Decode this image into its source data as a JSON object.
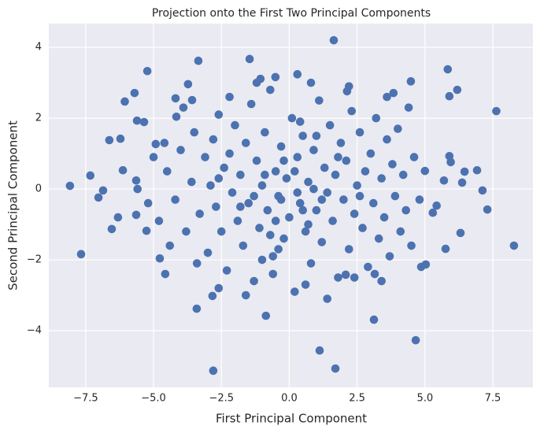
{
  "chart_data": {
    "type": "scatter",
    "title": "Projection onto the First Two Principal Components",
    "x_label": "First Principal Component",
    "y_label": "Second Principal Component",
    "color": "#4c72b0",
    "grid": true,
    "xlim": [
      -8.86,
      8.98
    ],
    "ylim": [
      -5.6,
      4.67
    ],
    "xticks": [
      {
        "value": -7.5,
        "label": "−7.5"
      },
      {
        "value": -5,
        "label": "−5.0"
      },
      {
        "value": -2.5,
        "label": "−2.5"
      },
      {
        "value": 0,
        "label": "0.0"
      },
      2.5,
      {
        "value": 5,
        "label": "5.0"
      },
      7.5
    ],
    "yticks": [
      {
        "value": -4,
        "label": "−4"
      },
      {
        "value": -2,
        "label": "−2"
      },
      0,
      2,
      4
    ],
    "x": [
      -8.08,
      -7.67,
      -7.33,
      -7.03,
      -6.86,
      -6.63,
      -6.54,
      -6.31,
      -6.22,
      -6.13,
      -6.06,
      -5.7,
      -5.61,
      -5.35,
      -5.64,
      -5.59,
      -5.64,
      -5.23,
      -5.26,
      -4.77,
      -4.57,
      -3.35,
      -3.73,
      -2.8,
      -3.41,
      -2.83,
      -1.46,
      -0.86,
      1.64,
      1.7,
      1.12,
      3.12,
      4.66,
      5.84,
      5.9,
      6.19,
      7.63,
      8.28,
      7.12,
      7.3,
      6.92,
      6.46,
      6.37,
      6.31,
      5.76,
      5.7,
      5.9,
      5.95,
      5.03,
      4.86,
      5.29,
      5.43,
      5.0,
      4.48,
      3.84,
      3.15,
      2.08,
      2.13,
      0.3,
      -0.51,
      -1.06,
      -4.16,
      -4.19,
      -3.58,
      -4.92,
      -4.5,
      -4.2,
      -4,
      -3.8,
      -3.6,
      -3.5,
      -3.3,
      -3.1,
      -3,
      -2.9,
      -2.8,
      -2.7,
      -2.6,
      -2.5,
      -2.4,
      -2.3,
      -2.2,
      -2.1,
      -2,
      -1.9,
      -1.8,
      -1.7,
      -1.6,
      -1.5,
      -1.4,
      -1.3,
      -1.2,
      -1.1,
      -1,
      -0.9,
      -0.8,
      -0.7,
      -0.6,
      -0.5,
      -0.4,
      -0.3,
      -0.2,
      -0.1,
      0,
      0.1,
      0.2,
      0.3,
      0.4,
      0.5,
      0.6,
      0.7,
      0.8,
      0.9,
      1,
      1.1,
      1.2,
      1.3,
      1.4,
      1.5,
      1.6,
      1.7,
      1.8,
      1.9,
      2,
      2.1,
      2.2,
      2.3,
      2.4,
      2.5,
      2.6,
      2.7,
      2.8,
      2.9,
      3,
      3.1,
      3.2,
      3.3,
      3.4,
      3.5,
      3.6,
      3.7,
      3.8,
      3.9,
      4,
      4.1,
      4.2,
      4.3,
      4.4,
      4.5,
      4.6,
      4.8,
      -4.8,
      -4.6,
      -4.4,
      -5,
      -5.2,
      -3.9,
      -3.4,
      -2.6,
      -1.6,
      -0.6,
      0.6,
      1.4,
      2.4,
      3.4,
      -2.2,
      -1.2,
      0.8,
      2.2,
      3.6,
      -0.3,
      0.3,
      0.5,
      -0.5,
      0.9,
      -0.9,
      1.2,
      -1.3,
      0.2,
      -0.2,
      0.7,
      -0.7,
      1.8,
      -1.8,
      2.6,
      -2.6,
      0.4,
      -0.4,
      1.0,
      -1.0
    ],
    "y": [
      0.09,
      -1.84,
      0.38,
      -0.24,
      -0.04,
      1.38,
      -1.13,
      -0.8,
      1.42,
      0.53,
      2.47,
      2.71,
      1.93,
      1.89,
      0.24,
      0,
      -0.73,
      3.33,
      -1.18,
      -1.96,
      -2.4,
      3.62,
      2.96,
      -5.13,
      -3.38,
      -3.02,
      3.67,
      -3.58,
      4.2,
      -5.07,
      -4.56,
      -3.69,
      -4.27,
      3.38,
      2.62,
      2.8,
      2.2,
      -1.6,
      -0.04,
      -0.58,
      0.53,
      0.49,
      0.18,
      -1.24,
      -1.69,
      0.24,
      0.93,
      0.76,
      -2.13,
      -2.2,
      -0.67,
      -0.47,
      0.51,
      3.04,
      2.71,
      -2.4,
      -2.42,
      2.76,
      3.24,
      3.16,
      3.11,
      2.04,
      2.56,
      2.51,
      1.27,
      0.5,
      -0.3,
      1.1,
      -1.2,
      0.2,
      1.6,
      -0.7,
      0.9,
      -1.8,
      0.1,
      1.4,
      -0.5,
      2.1,
      -1.2,
      0.6,
      -2.3,
      1.0,
      -0.1,
      1.8,
      -0.9,
      0.4,
      -1.6,
      1.3,
      -0.4,
      2.4,
      -2.6,
      0.8,
      -1.1,
      0.1,
      1.6,
      -0.6,
      2.8,
      -1.9,
      0.5,
      -0.2,
      1.2,
      -1.4,
      0.3,
      -0.8,
      2.0,
      -2.9,
      0.9,
      -0.4,
      1.5,
      -1.2,
      0.2,
      -2.1,
      1.1,
      -0.6,
      2.5,
      -1.5,
      0.6,
      -0.1,
      1.8,
      -0.9,
      0.4,
      -2.5,
      1.3,
      -0.3,
      0.8,
      -1.7,
      2.2,
      -0.7,
      0.1,
      1.6,
      -1.1,
      0.5,
      -2.2,
      1.0,
      -0.4,
      2.0,
      -1.4,
      0.3,
      -0.8,
      1.4,
      -1.9,
      0.7,
      -0.2,
      1.7,
      -1.2,
      0.4,
      -0.6,
      2.3,
      -1.6,
      0.9,
      -0.3,
      -0.9,
      1.3,
      -1.6,
      0.9,
      -0.4,
      2.3,
      -2.1,
      -2.8,
      -3.0,
      -2.4,
      -2.7,
      -3.1,
      -2.5,
      -2.6,
      2.6,
      3.0,
      3.0,
      2.9,
      2.6,
      -0.3,
      -0.1,
      -0.6,
      -0.9,
      0.0,
      0.4,
      -0.3,
      -0.2,
      0.5,
      0.8,
      -1.0,
      -1.3,
      0.9,
      -0.5,
      -0.2,
      0.3,
      1.9,
      -1.7,
      1.5,
      -2.0
    ]
  }
}
